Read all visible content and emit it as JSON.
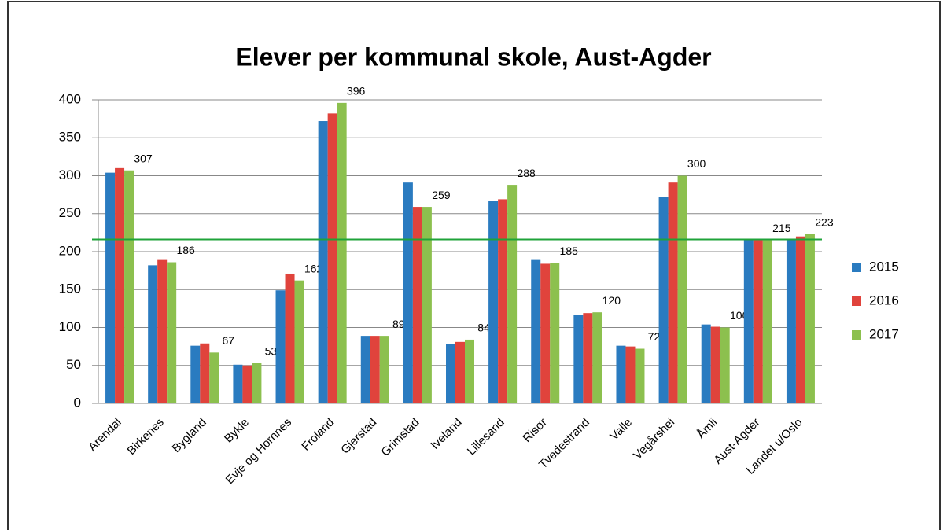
{
  "chart_data": {
    "type": "bar",
    "title": "Elever per kommunal skole, Aust-Agder",
    "categories": [
      "Arendal",
      "Birkenes",
      "Bygland",
      "Bykle",
      "Evje og Hornnes",
      "Froland",
      "Gjerstad",
      "Grimstad",
      "Iveland",
      "Lillesand",
      "Risør",
      "Tvedestrand",
      "Valle",
      "Vegårshei",
      "Åmli",
      "Aust-Agder",
      "Landet u/Oslo"
    ],
    "series": [
      {
        "name": "2015",
        "color": "#2a7bc0",
        "values": [
          304,
          182,
          76,
          51,
          149,
          372,
          89,
          291,
          78,
          267,
          189,
          117,
          76,
          272,
          104,
          217,
          217
        ]
      },
      {
        "name": "2016",
        "color": "#e0433c",
        "values": [
          310,
          189,
          79,
          50,
          171,
          382,
          89,
          259,
          81,
          269,
          184,
          119,
          75,
          291,
          101,
          215,
          220
        ]
      },
      {
        "name": "2017",
        "color": "#8cc04e",
        "values": [
          307,
          186,
          67,
          53,
          162,
          396,
          89,
          259,
          84,
          288,
          185,
          120,
          72,
          300,
          100,
          215,
          223
        ],
        "data_labels": true
      }
    ],
    "ylim": [
      0,
      400
    ],
    "yticks": [
      0,
      50,
      100,
      150,
      200,
      250,
      300,
      350,
      400
    ],
    "grid": true,
    "hline": {
      "value": 216,
      "color": "#1fa33a"
    },
    "legend": "right"
  }
}
